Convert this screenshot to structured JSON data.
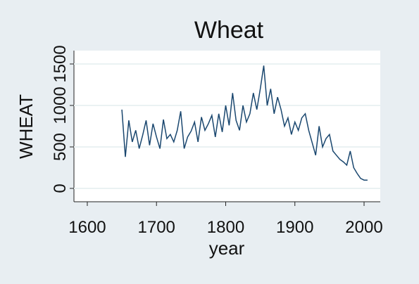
{
  "chart_data": {
    "type": "line",
    "title": "Wheat",
    "x_label": "year",
    "y_label": "WHEAT",
    "color": "#1a476f",
    "grid": true,
    "x": [
      1650,
      1655,
      1660,
      1665,
      1670,
      1675,
      1680,
      1685,
      1690,
      1695,
      1700,
      1705,
      1710,
      1715,
      1720,
      1725,
      1730,
      1735,
      1740,
      1745,
      1750,
      1755,
      1760,
      1765,
      1770,
      1775,
      1780,
      1785,
      1790,
      1795,
      1800,
      1805,
      1810,
      1815,
      1820,
      1825,
      1830,
      1835,
      1840,
      1845,
      1850,
      1855,
      1860,
      1865,
      1870,
      1875,
      1880,
      1885,
      1890,
      1895,
      1900,
      1905,
      1910,
      1915,
      1920,
      1925,
      1930,
      1935,
      1940,
      1945,
      1950,
      1955,
      1960,
      1965,
      1970,
      1975,
      1980,
      1985,
      1990,
      1995,
      2000,
      2005
    ],
    "values": [
      950,
      380,
      820,
      560,
      700,
      480,
      640,
      820,
      520,
      780,
      620,
      480,
      830,
      600,
      650,
      560,
      700,
      930,
      480,
      620,
      690,
      800,
      560,
      860,
      700,
      780,
      880,
      620,
      900,
      680,
      1000,
      760,
      1150,
      820,
      700,
      1000,
      800,
      900,
      1150,
      950,
      1200,
      1480,
      1000,
      1200,
      900,
      1100,
      950,
      750,
      850,
      650,
      800,
      700,
      850,
      900,
      700,
      550,
      400,
      750,
      500,
      600,
      650,
      450,
      400,
      350,
      320,
      280,
      450,
      250,
      180,
      120,
      100,
      100
    ],
    "xlim": [
      1580.7,
      2023.4
    ],
    "xticks": [
      1600,
      1700,
      1800,
      1900,
      2000
    ],
    "ylim": [
      -161,
      1661
    ],
    "yticks": [
      0,
      500,
      1000,
      1500
    ]
  }
}
